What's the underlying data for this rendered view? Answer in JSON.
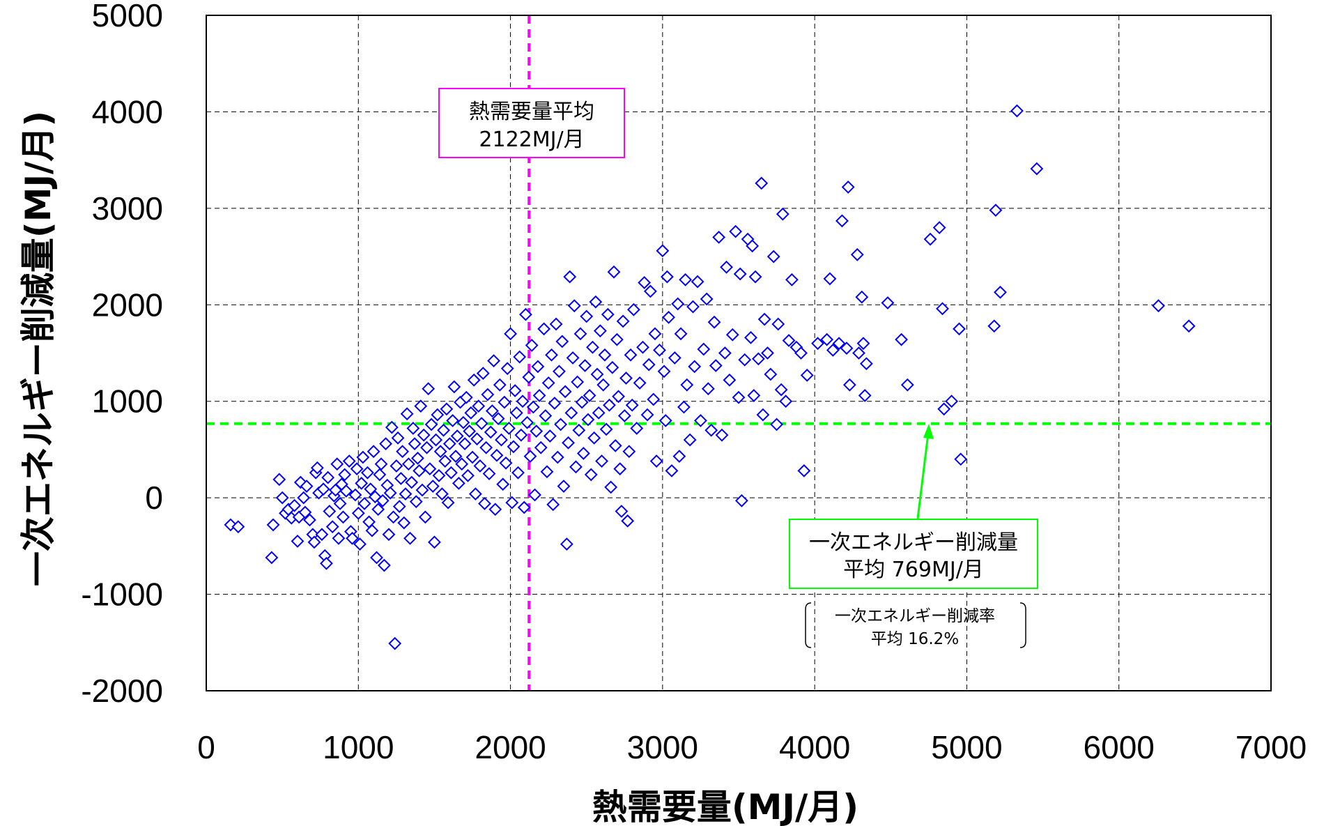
{
  "chart_data": {
    "type": "scatter",
    "xlabel": "熱需要量(MJ/月)",
    "ylabel": "一次エネルギー削減量(MJ/月)",
    "xlim": [
      0,
      7000
    ],
    "ylim": [
      -2000,
      5000
    ],
    "xticks": [
      "0",
      "1000",
      "2000",
      "3000",
      "4000",
      "5000",
      "6000",
      "7000"
    ],
    "yticks": [
      "5000",
      "4000",
      "3000",
      "2000",
      "1000",
      "0",
      "-1000",
      "-2000"
    ],
    "xtick_values": [
      0,
      1000,
      2000,
      3000,
      4000,
      5000,
      6000,
      7000
    ],
    "ytick_values": [
      5000,
      4000,
      3000,
      2000,
      1000,
      0,
      -1000,
      -2000
    ],
    "grid": true,
    "marker": "diamond",
    "marker_color": "#0000ff",
    "avg_x": 2122,
    "avg_y": 769,
    "avg_x_color": "#ff00ff",
    "avg_y_color": "#00ff00",
    "annotations": {
      "heat_avg_line1": "熱需要量平均",
      "heat_avg_line2": "2122MJ/月",
      "reduction_avg_line1": "一次エネルギー削減量",
      "reduction_avg_line2": "平均 769MJ/月",
      "rate_line1": "一次エネルギー削減率",
      "rate_line2": "平均 16.2%"
    },
    "points": [
      [
        160,
        -280
      ],
      [
        210,
        -300
      ],
      [
        430,
        -620
      ],
      [
        440,
        -280
      ],
      [
        480,
        190
      ],
      [
        500,
        0
      ],
      [
        520,
        -160
      ],
      [
        540,
        -120
      ],
      [
        560,
        -210
      ],
      [
        580,
        -80
      ],
      [
        600,
        -450
      ],
      [
        610,
        -200
      ],
      [
        620,
        160
      ],
      [
        640,
        0
      ],
      [
        650,
        -150
      ],
      [
        660,
        120
      ],
      [
        680,
        -230
      ],
      [
        700,
        -380
      ],
      [
        710,
        -460
      ],
      [
        720,
        260
      ],
      [
        730,
        310
      ],
      [
        740,
        50
      ],
      [
        760,
        -380
      ],
      [
        770,
        90
      ],
      [
        780,
        -600
      ],
      [
        790,
        -680
      ],
      [
        800,
        210
      ],
      [
        810,
        -140
      ],
      [
        830,
        -300
      ],
      [
        840,
        20
      ],
      [
        850,
        80
      ],
      [
        860,
        350
      ],
      [
        870,
        -420
      ],
      [
        880,
        -60
      ],
      [
        890,
        140
      ],
      [
        900,
        -200
      ],
      [
        910,
        240
      ],
      [
        920,
        70
      ],
      [
        940,
        380
      ],
      [
        950,
        -350
      ],
      [
        960,
        -420
      ],
      [
        980,
        30
      ],
      [
        990,
        300
      ],
      [
        1000,
        -160
      ],
      [
        1010,
        -480
      ],
      [
        1020,
        150
      ],
      [
        1030,
        420
      ],
      [
        1040,
        -60
      ],
      [
        1060,
        260
      ],
      [
        1070,
        -250
      ],
      [
        1080,
        90
      ],
      [
        1090,
        -340
      ],
      [
        1100,
        480
      ],
      [
        1110,
        10
      ],
      [
        1120,
        -620
      ],
      [
        1130,
        -120
      ],
      [
        1140,
        240
      ],
      [
        1150,
        350
      ],
      [
        1160,
        -30
      ],
      [
        1170,
        -700
      ],
      [
        1180,
        560
      ],
      [
        1190,
        130
      ],
      [
        1200,
        -380
      ],
      [
        1210,
        50
      ],
      [
        1220,
        730
      ],
      [
        1230,
        -200
      ],
      [
        1240,
        -1510
      ],
      [
        1250,
        330
      ],
      [
        1260,
        620
      ],
      [
        1270,
        -90
      ],
      [
        1280,
        200
      ],
      [
        1290,
        480
      ],
      [
        1300,
        -260
      ],
      [
        1310,
        40
      ],
      [
        1320,
        870
      ],
      [
        1330,
        350
      ],
      [
        1340,
        -420
      ],
      [
        1350,
        160
      ],
      [
        1360,
        720
      ],
      [
        1370,
        560
      ],
      [
        1380,
        -40
      ],
      [
        1390,
        410
      ],
      [
        1400,
        280
      ],
      [
        1410,
        950
      ],
      [
        1420,
        80
      ],
      [
        1430,
        650
      ],
      [
        1440,
        -200
      ],
      [
        1450,
        520
      ],
      [
        1460,
        1130
      ],
      [
        1470,
        300
      ],
      [
        1480,
        760
      ],
      [
        1490,
        120
      ],
      [
        1500,
        -460
      ],
      [
        1510,
        600
      ],
      [
        1520,
        860
      ],
      [
        1530,
        230
      ],
      [
        1540,
        480
      ],
      [
        1550,
        40
      ],
      [
        1560,
        700
      ],
      [
        1570,
        380
      ],
      [
        1580,
        920
      ],
      [
        1590,
        -50
      ],
      [
        1600,
        560
      ],
      [
        1610,
        260
      ],
      [
        1620,
        800
      ],
      [
        1630,
        1150
      ],
      [
        1640,
        430
      ],
      [
        1650,
        640
      ],
      [
        1660,
        150
      ],
      [
        1670,
        990
      ],
      [
        1680,
        350
      ],
      [
        1690,
        780
      ],
      [
        1700,
        560
      ],
      [
        1710,
        1040
      ],
      [
        1720,
        230
      ],
      [
        1730,
        690
      ],
      [
        1740,
        880
      ],
      [
        1750,
        420
      ],
      [
        1760,
        1220
      ],
      [
        1770,
        40
      ],
      [
        1780,
        610
      ],
      [
        1790,
        950
      ],
      [
        1800,
        330
      ],
      [
        1810,
        770
      ],
      [
        1820,
        1290
      ],
      [
        1830,
        -60
      ],
      [
        1840,
        520
      ],
      [
        1850,
        1070
      ],
      [
        1860,
        250
      ],
      [
        1870,
        680
      ],
      [
        1880,
        900
      ],
      [
        1890,
        1420
      ],
      [
        1900,
        -120
      ],
      [
        1910,
        440
      ],
      [
        1920,
        820
      ],
      [
        1930,
        1170
      ],
      [
        1940,
        600
      ],
      [
        1950,
        140
      ],
      [
        1960,
        990
      ],
      [
        1970,
        360
      ],
      [
        1980,
        1340
      ],
      [
        1990,
        720
      ],
      [
        2000,
        1700
      ],
      [
        2010,
        -50
      ],
      [
        2020,
        530
      ],
      [
        2030,
        1110
      ],
      [
        2040,
        880
      ],
      [
        2050,
        260
      ],
      [
        2060,
        1460
      ],
      [
        2070,
        650
      ],
      [
        2080,
        1000
      ],
      [
        2090,
        -100
      ],
      [
        2100,
        1900
      ],
      [
        2110,
        780
      ],
      [
        2120,
        1250
      ],
      [
        2130,
        430
      ],
      [
        2140,
        1580
      ],
      [
        2150,
        940
      ],
      [
        2160,
        30
      ],
      [
        2170,
        690
      ],
      [
        2180,
        1360
      ],
      [
        2190,
        1060
      ],
      [
        2200,
        520
      ],
      [
        2220,
        1750
      ],
      [
        2230,
        850
      ],
      [
        2240,
        270
      ],
      [
        2250,
        1190
      ],
      [
        2260,
        640
      ],
      [
        2270,
        1480
      ],
      [
        2280,
        -70
      ],
      [
        2290,
        980
      ],
      [
        2300,
        1800
      ],
      [
        2310,
        420
      ],
      [
        2320,
        1310
      ],
      [
        2330,
        760
      ],
      [
        2340,
        1620
      ],
      [
        2350,
        120
      ],
      [
        2360,
        1100
      ],
      [
        2370,
        -480
      ],
      [
        2380,
        570
      ],
      [
        2390,
        2290
      ],
      [
        2400,
        880
      ],
      [
        2410,
        1450
      ],
      [
        2420,
        1990
      ],
      [
        2430,
        320
      ],
      [
        2440,
        1200
      ],
      [
        2450,
        700
      ],
      [
        2460,
        1700
      ],
      [
        2470,
        990
      ],
      [
        2480,
        460
      ],
      [
        2490,
        1370
      ],
      [
        2500,
        1880
      ],
      [
        2510,
        810
      ],
      [
        2520,
        1060
      ],
      [
        2530,
        240
      ],
      [
        2540,
        1560
      ],
      [
        2550,
        620
      ],
      [
        2560,
        2030
      ],
      [
        2570,
        1280
      ],
      [
        2580,
        880
      ],
      [
        2590,
        1730
      ],
      [
        2600,
        380
      ],
      [
        2610,
        1170
      ],
      [
        2620,
        1480
      ],
      [
        2630,
        710
      ],
      [
        2640,
        1900
      ],
      [
        2650,
        960
      ],
      [
        2660,
        110
      ],
      [
        2670,
        1350
      ],
      [
        2680,
        2340
      ],
      [
        2690,
        540
      ],
      [
        2700,
        1640
      ],
      [
        2710,
        1050
      ],
      [
        2720,
        300
      ],
      [
        2730,
        -140
      ],
      [
        2740,
        1830
      ],
      [
        2750,
        850
      ],
      [
        2760,
        1240
      ],
      [
        2770,
        -240
      ],
      [
        2780,
        480
      ],
      [
        2790,
        1480
      ],
      [
        2800,
        960
      ],
      [
        2810,
        1950
      ],
      [
        2830,
        720
      ],
      [
        2850,
        1190
      ],
      [
        2870,
        1560
      ],
      [
        2880,
        2230
      ],
      [
        2900,
        860
      ],
      [
        2910,
        1380
      ],
      [
        2920,
        2140
      ],
      [
        2940,
        1020
      ],
      [
        2950,
        1700
      ],
      [
        2960,
        380
      ],
      [
        2980,
        1530
      ],
      [
        3000,
        2560
      ],
      [
        3010,
        1310
      ],
      [
        3020,
        800
      ],
      [
        3030,
        2290
      ],
      [
        3040,
        1870
      ],
      [
        3060,
        280
      ],
      [
        3080,
        1450
      ],
      [
        3100,
        2010
      ],
      [
        3110,
        430
      ],
      [
        3120,
        1700
      ],
      [
        3140,
        940
      ],
      [
        3150,
        2260
      ],
      [
        3160,
        1170
      ],
      [
        3180,
        600
      ],
      [
        3200,
        1980
      ],
      [
        3210,
        1360
      ],
      [
        3230,
        2240
      ],
      [
        3250,
        800
      ],
      [
        3270,
        1540
      ],
      [
        3290,
        2060
      ],
      [
        3300,
        1130
      ],
      [
        3320,
        700
      ],
      [
        3340,
        1820
      ],
      [
        3350,
        1370
      ],
      [
        3370,
        2700
      ],
      [
        3390,
        650
      ],
      [
        3410,
        1500
      ],
      [
        3420,
        2390
      ],
      [
        3440,
        1220
      ],
      [
        3460,
        1690
      ],
      [
        3480,
        2760
      ],
      [
        3500,
        1040
      ],
      [
        3510,
        2320
      ],
      [
        3520,
        -30
      ],
      [
        3540,
        1430
      ],
      [
        3560,
        2680
      ],
      [
        3580,
        1660
      ],
      [
        3590,
        2610
      ],
      [
        3600,
        1060
      ],
      [
        3610,
        2290
      ],
      [
        3630,
        1440
      ],
      [
        3650,
        3260
      ],
      [
        3660,
        860
      ],
      [
        3670,
        1850
      ],
      [
        3690,
        1500
      ],
      [
        3710,
        1280
      ],
      [
        3730,
        2500
      ],
      [
        3750,
        760
      ],
      [
        3760,
        1800
      ],
      [
        3780,
        1120
      ],
      [
        3790,
        2940
      ],
      [
        3810,
        1000
      ],
      [
        3830,
        1630
      ],
      [
        3850,
        2260
      ],
      [
        3880,
        1560
      ],
      [
        3910,
        1500
      ],
      [
        3930,
        280
      ],
      [
        3950,
        1270
      ],
      [
        4020,
        1600
      ],
      [
        4080,
        1640
      ],
      [
        4100,
        2270
      ],
      [
        4120,
        1530
      ],
      [
        4160,
        1600
      ],
      [
        4180,
        2870
      ],
      [
        4210,
        1550
      ],
      [
        4220,
        3220
      ],
      [
        4230,
        1170
      ],
      [
        4280,
        2520
      ],
      [
        4290,
        1500
      ],
      [
        4310,
        2080
      ],
      [
        4320,
        1600
      ],
      [
        4330,
        1060
      ],
      [
        4340,
        1390
      ],
      [
        4480,
        2020
      ],
      [
        4570,
        1640
      ],
      [
        4610,
        1170
      ],
      [
        4760,
        2680
      ],
      [
        4820,
        2800
      ],
      [
        4840,
        1960
      ],
      [
        4850,
        920
      ],
      [
        4900,
        1000
      ],
      [
        4950,
        1750
      ],
      [
        4960,
        400
      ],
      [
        5180,
        1780
      ],
      [
        5190,
        2980
      ],
      [
        5220,
        2130
      ],
      [
        5330,
        4010
      ],
      [
        5460,
        3410
      ],
      [
        6260,
        1990
      ],
      [
        6460,
        1780
      ]
    ]
  }
}
